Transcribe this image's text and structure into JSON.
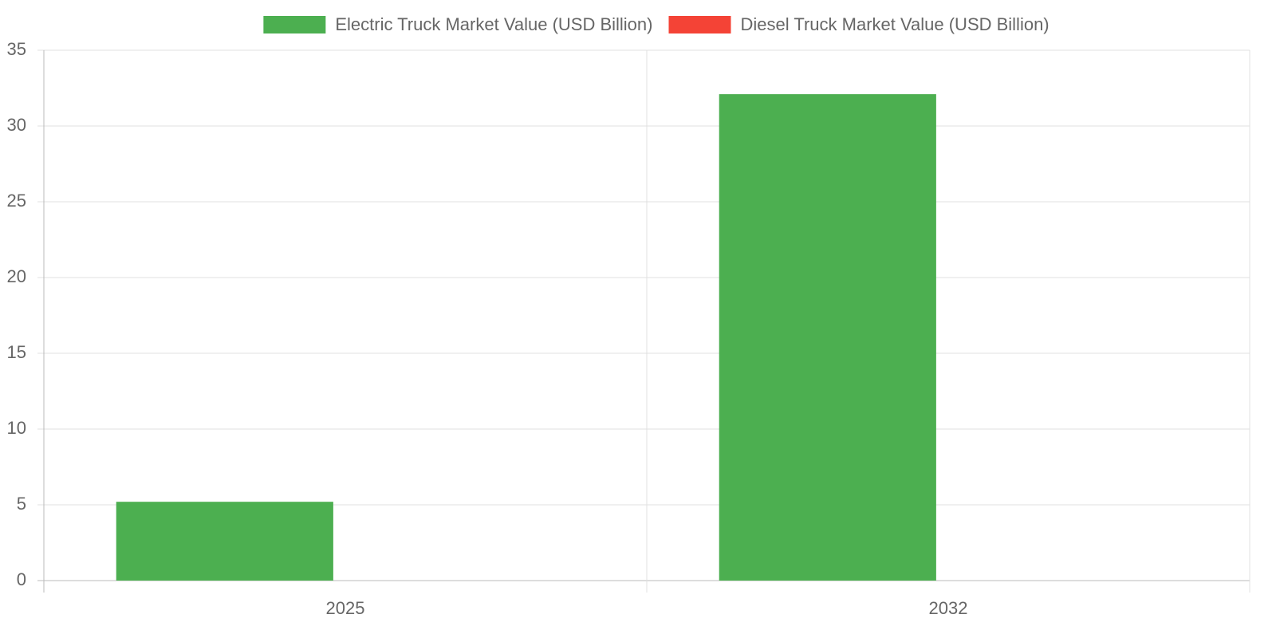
{
  "chart_data": {
    "type": "bar",
    "categories": [
      "2025",
      "2032"
    ],
    "series": [
      {
        "name": "Electric Truck Market Value (USD Billion)",
        "color": "#4caf50",
        "values": [
          5.2,
          32.1
        ]
      },
      {
        "name": "Diesel Truck Market Value (USD Billion)",
        "color": "#f44336",
        "values": [
          null,
          null
        ]
      }
    ],
    "ylim": [
      0,
      35
    ],
    "yticks": [
      0,
      5,
      10,
      15,
      20,
      25,
      30,
      35
    ],
    "grid": true,
    "legend": "top"
  }
}
